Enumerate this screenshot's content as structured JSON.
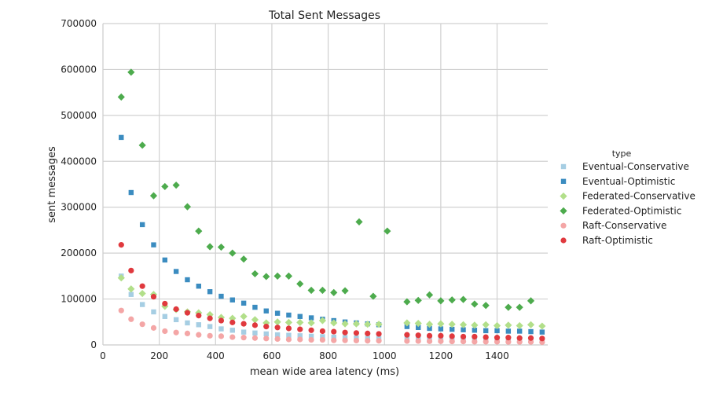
{
  "chart_data": {
    "type": "scatter",
    "title": "Total Sent Messages",
    "xlabel": "mean wide area latency (ms)",
    "ylabel": "sent messages",
    "xlim": [
      0,
      1580
    ],
    "ylim": [
      0,
      700000
    ],
    "xticks": [
      0,
      200,
      400,
      600,
      800,
      1000,
      1200,
      1400
    ],
    "yticks": [
      0,
      100000,
      200000,
      300000,
      400000,
      500000,
      600000,
      700000
    ],
    "grid": true,
    "legend": {
      "title": "type",
      "placement": "right"
    },
    "series": [
      {
        "name": "Eventual-Conservative",
        "color": "#a6cee3",
        "marker": "square",
        "points": [
          [
            65,
            150000
          ],
          [
            100,
            110000
          ],
          [
            140,
            88000
          ],
          [
            180,
            72000
          ],
          [
            220,
            62000
          ],
          [
            260,
            55000
          ],
          [
            300,
            48000
          ],
          [
            340,
            44000
          ],
          [
            380,
            40000
          ],
          [
            420,
            35000
          ],
          [
            460,
            32000
          ],
          [
            500,
            28000
          ],
          [
            540,
            26000
          ],
          [
            580,
            24000
          ],
          [
            620,
            22000
          ],
          [
            660,
            21000
          ],
          [
            700,
            20000
          ],
          [
            740,
            19000
          ],
          [
            780,
            18000
          ],
          [
            820,
            17000
          ],
          [
            860,
            16000
          ],
          [
            900,
            15000
          ],
          [
            940,
            14000
          ],
          [
            980,
            14000
          ],
          [
            1080,
            13000
          ],
          [
            1120,
            13000
          ],
          [
            1160,
            12000
          ],
          [
            1200,
            11000
          ],
          [
            1240,
            11000
          ],
          [
            1280,
            10000
          ],
          [
            1320,
            10000
          ],
          [
            1360,
            10000
          ],
          [
            1400,
            9000
          ],
          [
            1440,
            9000
          ],
          [
            1480,
            9000
          ],
          [
            1520,
            9000
          ],
          [
            1560,
            8000
          ]
        ]
      },
      {
        "name": "Eventual-Optimistic",
        "color": "#3b8cc0",
        "marker": "square",
        "points": [
          [
            65,
            452000
          ],
          [
            100,
            332000
          ],
          [
            140,
            262000
          ],
          [
            180,
            218000
          ],
          [
            220,
            185000
          ],
          [
            260,
            160000
          ],
          [
            300,
            142000
          ],
          [
            340,
            128000
          ],
          [
            380,
            116000
          ],
          [
            420,
            106000
          ],
          [
            460,
            98000
          ],
          [
            500,
            91000
          ],
          [
            540,
            82000
          ],
          [
            580,
            74000
          ],
          [
            620,
            69000
          ],
          [
            660,
            65000
          ],
          [
            700,
            62000
          ],
          [
            740,
            59000
          ],
          [
            780,
            56000
          ],
          [
            820,
            53000
          ],
          [
            860,
            50000
          ],
          [
            900,
            48000
          ],
          [
            940,
            46000
          ],
          [
            980,
            44000
          ],
          [
            1080,
            40000
          ],
          [
            1120,
            38000
          ],
          [
            1160,
            36000
          ],
          [
            1200,
            35000
          ],
          [
            1240,
            34000
          ],
          [
            1280,
            33000
          ],
          [
            1320,
            32000
          ],
          [
            1360,
            31000
          ],
          [
            1400,
            31000
          ],
          [
            1440,
            30000
          ],
          [
            1480,
            30000
          ],
          [
            1520,
            29000
          ],
          [
            1560,
            28000
          ]
        ]
      },
      {
        "name": "Federated-Conservative",
        "color": "#b2df8a",
        "marker": "diamond",
        "points": [
          [
            65,
            146000
          ],
          [
            100,
            122000
          ],
          [
            140,
            112000
          ],
          [
            180,
            110000
          ],
          [
            220,
            84000
          ],
          [
            260,
            77000
          ],
          [
            300,
            72000
          ],
          [
            340,
            70000
          ],
          [
            380,
            66000
          ],
          [
            420,
            60000
          ],
          [
            460,
            58000
          ],
          [
            500,
            62000
          ],
          [
            540,
            55000
          ],
          [
            580,
            48000
          ],
          [
            620,
            50000
          ],
          [
            660,
            49000
          ],
          [
            700,
            49000
          ],
          [
            740,
            48000
          ],
          [
            780,
            53000
          ],
          [
            820,
            48000
          ],
          [
            860,
            46000
          ],
          [
            900,
            46000
          ],
          [
            940,
            45000
          ],
          [
            980,
            45000
          ],
          [
            1080,
            48000
          ],
          [
            1120,
            47000
          ],
          [
            1160,
            45000
          ],
          [
            1200,
            46000
          ],
          [
            1240,
            45000
          ],
          [
            1280,
            44000
          ],
          [
            1320,
            43000
          ],
          [
            1360,
            44000
          ],
          [
            1400,
            42000
          ],
          [
            1440,
            43000
          ],
          [
            1480,
            42000
          ],
          [
            1520,
            44000
          ],
          [
            1560,
            41000
          ]
        ]
      },
      {
        "name": "Federated-Optimistic",
        "color": "#4dab4d",
        "marker": "diamond",
        "points": [
          [
            65,
            540000
          ],
          [
            100,
            594000
          ],
          [
            140,
            435000
          ],
          [
            180,
            325000
          ],
          [
            220,
            345000
          ],
          [
            260,
            348000
          ],
          [
            300,
            301000
          ],
          [
            340,
            248000
          ],
          [
            380,
            214000
          ],
          [
            420,
            213000
          ],
          [
            460,
            200000
          ],
          [
            500,
            187000
          ],
          [
            540,
            155000
          ],
          [
            580,
            149000
          ],
          [
            620,
            150000
          ],
          [
            660,
            150000
          ],
          [
            700,
            133000
          ],
          [
            740,
            119000
          ],
          [
            780,
            119000
          ],
          [
            820,
            114000
          ],
          [
            860,
            118000
          ],
          [
            910,
            268000
          ],
          [
            960,
            106000
          ],
          [
            1010,
            248000
          ],
          [
            1080,
            94000
          ],
          [
            1120,
            97000
          ],
          [
            1160,
            109000
          ],
          [
            1200,
            96000
          ],
          [
            1240,
            98000
          ],
          [
            1280,
            99000
          ],
          [
            1320,
            89000
          ],
          [
            1360,
            86000
          ],
          [
            1440,
            82000
          ],
          [
            1480,
            82000
          ],
          [
            1520,
            96000
          ]
        ]
      },
      {
        "name": "Raft-Conservative",
        "color": "#f4a6a6",
        "marker": "circle",
        "points": [
          [
            65,
            75000
          ],
          [
            100,
            56000
          ],
          [
            140,
            45000
          ],
          [
            180,
            37000
          ],
          [
            220,
            30000
          ],
          [
            260,
            27000
          ],
          [
            300,
            25000
          ],
          [
            340,
            22000
          ],
          [
            380,
            20000
          ],
          [
            420,
            19000
          ],
          [
            460,
            17000
          ],
          [
            500,
            16000
          ],
          [
            540,
            15000
          ],
          [
            580,
            14000
          ],
          [
            620,
            13000
          ],
          [
            660,
            12000
          ],
          [
            700,
            12000
          ],
          [
            740,
            11000
          ],
          [
            780,
            11000
          ],
          [
            820,
            10000
          ],
          [
            860,
            10000
          ],
          [
            900,
            9500
          ],
          [
            940,
            9000
          ],
          [
            980,
            9000
          ],
          [
            1080,
            8500
          ],
          [
            1120,
            8500
          ],
          [
            1160,
            8000
          ],
          [
            1200,
            8000
          ],
          [
            1240,
            7500
          ],
          [
            1280,
            7500
          ],
          [
            1320,
            7000
          ],
          [
            1360,
            7000
          ],
          [
            1400,
            7000
          ],
          [
            1440,
            6500
          ],
          [
            1480,
            6500
          ],
          [
            1520,
            6500
          ],
          [
            1560,
            6000
          ]
        ]
      },
      {
        "name": "Raft-Optimistic",
        "color": "#e0393e",
        "marker": "circle",
        "points": [
          [
            65,
            218000
          ],
          [
            100,
            162000
          ],
          [
            140,
            128000
          ],
          [
            180,
            105000
          ],
          [
            220,
            90000
          ],
          [
            260,
            78000
          ],
          [
            300,
            70000
          ],
          [
            340,
            64000
          ],
          [
            380,
            58000
          ],
          [
            420,
            53000
          ],
          [
            460,
            49000
          ],
          [
            500,
            46000
          ],
          [
            540,
            43000
          ],
          [
            580,
            40000
          ],
          [
            620,
            38000
          ],
          [
            660,
            36000
          ],
          [
            700,
            34000
          ],
          [
            740,
            32000
          ],
          [
            780,
            30000
          ],
          [
            820,
            29000
          ],
          [
            860,
            27000
          ],
          [
            900,
            26000
          ],
          [
            940,
            25000
          ],
          [
            980,
            24000
          ],
          [
            1080,
            22000
          ],
          [
            1120,
            21000
          ],
          [
            1160,
            20000
          ],
          [
            1200,
            20000
          ],
          [
            1240,
            19000
          ],
          [
            1280,
            18000
          ],
          [
            1320,
            18000
          ],
          [
            1360,
            17000
          ],
          [
            1400,
            16000
          ],
          [
            1440,
            16000
          ],
          [
            1480,
            15000
          ],
          [
            1520,
            15000
          ],
          [
            1560,
            14000
          ]
        ]
      }
    ]
  }
}
